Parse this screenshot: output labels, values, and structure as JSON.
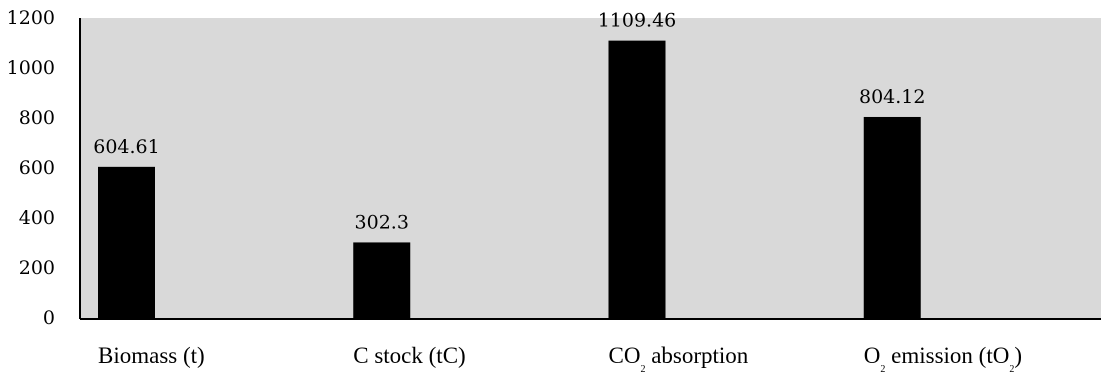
{
  "chart_data": {
    "type": "bar",
    "categories": [
      {
        "main": "Biomass (t)",
        "parts": [
          {
            "text": "Biomass (t)",
            "sub": false
          }
        ]
      },
      {
        "main": "C stock (tC)",
        "parts": [
          {
            "text": "C stock (tC)",
            "sub": false
          }
        ]
      },
      {
        "main": "CO2 absorption",
        "parts": [
          {
            "text": "CO",
            "sub": false
          },
          {
            "text": "2",
            "sub": true
          },
          {
            "text": " absorption",
            "sub": false
          }
        ]
      },
      {
        "main": "O2 emission (tO2)",
        "parts": [
          {
            "text": "O",
            "sub": false
          },
          {
            "text": "2",
            "sub": true
          },
          {
            "text": " emission (tO",
            "sub": false
          },
          {
            "text": "2",
            "sub": true
          },
          {
            "text": ")",
            "sub": false
          }
        ]
      }
    ],
    "values": [
      604.61,
      302.3,
      1109.46,
      804.12
    ],
    "data_labels": [
      "604.61",
      "302.3",
      "1109.46",
      "804.12"
    ],
    "y_ticks": [
      0,
      200,
      400,
      600,
      800,
      1000,
      1200
    ],
    "ylim": [
      0,
      1200
    ],
    "xlabel": "",
    "ylabel": "",
    "grid": false,
    "legend": "none",
    "colors": {
      "bar": "#000000",
      "plot_background": "#d9d9d9",
      "axis": "#000000"
    }
  }
}
